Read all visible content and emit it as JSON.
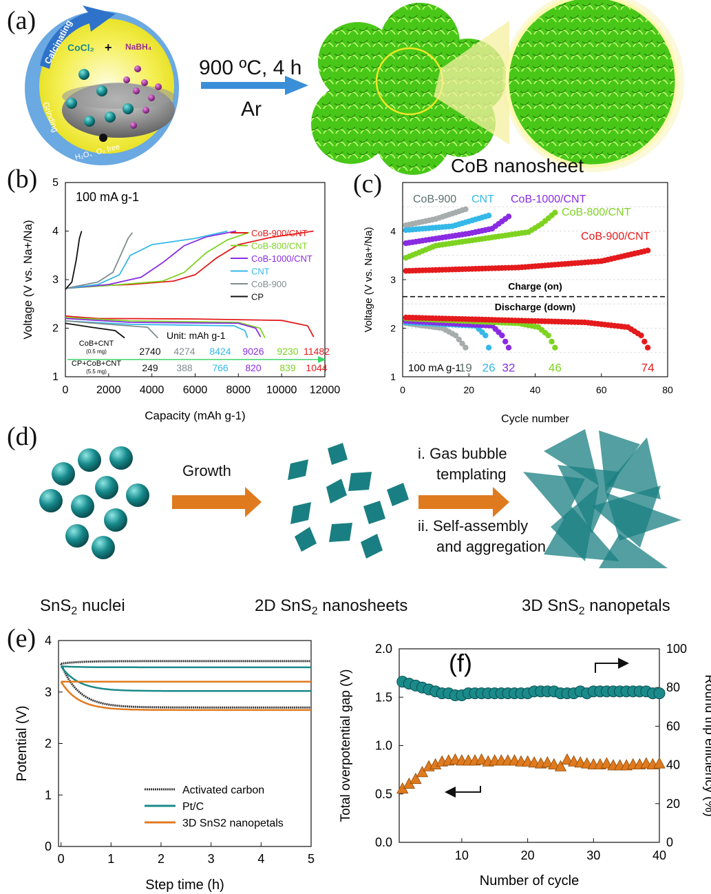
{
  "panels": {
    "a": "(a)",
    "b": "(b)",
    "c": "(c)",
    "d": "(d)",
    "e": "(e)",
    "f": "(f)"
  },
  "panel_a": {
    "calcinating": "Calcinating",
    "cocl2": "CoCl₂",
    "plus": "+",
    "nabh4": "NaBH₄",
    "grinding": "Grinding",
    "free": "H₂O、O₂ free",
    "condition": "900 ºC, 4 h",
    "gas": "Ar",
    "product": "CoB nanosheet",
    "colors": {
      "nano_green": "#4fd21a",
      "ring_yellow": "#f4ef52",
      "arrow_blue": "#3a8fd8"
    }
  },
  "panel_d": {
    "step1": "Growth",
    "step2a": "i.  Gas bubble",
    "step2b": "templating",
    "step2c": "ii. Self-assembly",
    "step2d": "and aggregation",
    "label1_pre": "SnS",
    "label1_sub": "2",
    "label1_post": " nuclei",
    "label2_pre": "2D SnS",
    "label2_sub": "2",
    "label2_post": " nanosheets",
    "label3_pre": "3D SnS",
    "label3_sub": "2",
    "label3_post": " nanopetals",
    "colors": {
      "teal": "#1a7f82",
      "orange_arrow": "#e07a1e"
    }
  },
  "chart_data": [
    {
      "id": "b",
      "type": "line",
      "annotation": "100 mA g-1",
      "xlabel": "Capacity (mAh g-1)",
      "ylabel": "Voltage (V vs. Na+/Na)",
      "xlim": [
        0,
        12000
      ],
      "ylim": [
        1,
        5
      ],
      "xticks": [
        0,
        2000,
        4000,
        6000,
        8000,
        10000,
        12000
      ],
      "yticks": [
        1,
        2,
        3,
        4,
        5
      ],
      "series": [
        {
          "name": "CoB-900/CNT",
          "color": "#e41a1c",
          "capacity": 11482,
          "charge": [
            [
              0,
              2.82
            ],
            [
              600,
              2.86
            ],
            [
              3000,
              2.9
            ],
            [
              5000,
              2.97
            ],
            [
              6000,
              3.1
            ],
            [
              7000,
              3.45
            ],
            [
              8000,
              3.72
            ],
            [
              9500,
              3.87
            ],
            [
              11482,
              4.0
            ]
          ],
          "discharge": [
            [
              0,
              2.25
            ],
            [
              1500,
              2.2
            ],
            [
              6000,
              2.19
            ],
            [
              10000,
              2.16
            ],
            [
              11200,
              2.05
            ],
            [
              11482,
              1.82
            ]
          ]
        },
        {
          "name": "CoB-800/CNT",
          "color": "#7ed321",
          "capacity": 9230,
          "charge": [
            [
              0,
              2.82
            ],
            [
              2000,
              2.88
            ],
            [
              4500,
              2.97
            ],
            [
              5500,
              3.15
            ],
            [
              6500,
              3.55
            ],
            [
              7500,
              3.82
            ],
            [
              8500,
              3.97
            ]
          ],
          "discharge": [
            [
              0,
              2.22
            ],
            [
              3000,
              2.15
            ],
            [
              8000,
              2.12
            ],
            [
              9000,
              2.0
            ],
            [
              9230,
              1.8
            ]
          ]
        },
        {
          "name": "CoB-1000/CNT",
          "color": "#8a2be2",
          "capacity": 9026,
          "charge": [
            [
              0,
              2.82
            ],
            [
              2000,
              2.9
            ],
            [
              3500,
              3.05
            ],
            [
              4500,
              3.35
            ],
            [
              5500,
              3.7
            ],
            [
              6500,
              3.88
            ],
            [
              7900,
              4.0
            ]
          ],
          "discharge": [
            [
              0,
              2.2
            ],
            [
              3000,
              2.12
            ],
            [
              8000,
              2.1
            ],
            [
              8800,
              2.0
            ],
            [
              9026,
              1.82
            ]
          ]
        },
        {
          "name": "CNT",
          "color": "#34b8e8",
          "capacity": 8424,
          "charge": [
            [
              0,
              2.82
            ],
            [
              1500,
              2.9
            ],
            [
              2500,
              3.1
            ],
            [
              3000,
              3.5
            ],
            [
              4000,
              3.72
            ],
            [
              6000,
              3.85
            ],
            [
              7500,
              4.0
            ]
          ],
          "discharge": [
            [
              0,
              2.15
            ],
            [
              3000,
              2.08
            ],
            [
              7800,
              2.05
            ],
            [
              8300,
              1.95
            ],
            [
              8424,
              1.8
            ]
          ]
        },
        {
          "name": "CoB-900",
          "color": "#7f8c8d",
          "capacity": 4274,
          "charge": [
            [
              0,
              2.82
            ],
            [
              1500,
              2.95
            ],
            [
              2200,
              3.15
            ],
            [
              2600,
              3.55
            ],
            [
              2900,
              3.85
            ],
            [
              3100,
              3.97
            ]
          ],
          "discharge": [
            [
              0,
              2.15
            ],
            [
              2000,
              2.08
            ],
            [
              3800,
              2.02
            ],
            [
              4274,
              1.8
            ]
          ]
        },
        {
          "name": "CP",
          "color": "#111111",
          "capacity": 2740,
          "charge": [
            [
              0,
              2.8
            ],
            [
              300,
              2.95
            ],
            [
              500,
              3.4
            ],
            [
              650,
              3.85
            ],
            [
              750,
              4.0
            ]
          ],
          "discharge": [
            [
              0,
              2.1
            ],
            [
              1200,
              2.02
            ],
            [
              2300,
              1.95
            ],
            [
              2740,
              1.8
            ]
          ]
        }
      ],
      "table": {
        "unit": "Unit: mAh g-1",
        "row1_label": "CoB+CNT",
        "row1_sub": "(0.5 mg)",
        "row1": [
          "2740",
          "4274",
          "8424",
          "9026",
          "9230",
          "11482"
        ],
        "row2_label": "CP+CoB+CNT",
        "row2_sub": "(5.5 mg)",
        "row2": [
          "249",
          "388",
          "766",
          "820",
          "839",
          "1044"
        ]
      }
    },
    {
      "id": "c",
      "type": "scatter",
      "annotation": "100 mA g-1",
      "xlabel": "Cycle number",
      "ylabel": "Voltage (V vs. Na+/Na)",
      "xlim": [
        0,
        80
      ],
      "ylim": [
        1,
        5
      ],
      "xticks": [
        0,
        20,
        40,
        60,
        80
      ],
      "yticks": [
        1,
        2,
        3,
        4
      ],
      "charge_label": "Charge (on)",
      "discharge_label": "Discharge (down)",
      "series": [
        {
          "name": "CoB-900",
          "color": "#a7adad",
          "cycles": 19,
          "charge": [
            [
              1,
              4.12
            ],
            [
              10,
              4.25
            ],
            [
              19,
              4.45
            ]
          ],
          "discharge": [
            [
              1,
              2.1
            ],
            [
              12,
              2.0
            ],
            [
              16,
              1.85
            ],
            [
              19,
              1.6
            ]
          ]
        },
        {
          "name": "CNT",
          "color": "#34b8e8",
          "cycles": 26,
          "charge": [
            [
              1,
              4.02
            ],
            [
              15,
              4.1
            ],
            [
              26,
              4.32
            ]
          ],
          "discharge": [
            [
              1,
              2.12
            ],
            [
              22,
              2.05
            ],
            [
              25,
              1.85
            ],
            [
              26,
              1.6
            ]
          ]
        },
        {
          "name": "CoB-1000/CNT",
          "color": "#8a2be2",
          "cycles": 32,
          "charge": [
            [
              1,
              3.75
            ],
            [
              20,
              3.95
            ],
            [
              27,
              4.05
            ],
            [
              32,
              4.3
            ]
          ],
          "discharge": [
            [
              1,
              2.15
            ],
            [
              27,
              2.05
            ],
            [
              30,
              1.85
            ],
            [
              32,
              1.6
            ]
          ]
        },
        {
          "name": "CoB-800/CNT",
          "color": "#7ed321",
          "cycles": 46,
          "charge": [
            [
              1,
              3.45
            ],
            [
              10,
              3.7
            ],
            [
              38,
              3.98
            ],
            [
              42,
              4.15
            ],
            [
              46,
              4.38
            ]
          ],
          "discharge": [
            [
              1,
              2.2
            ],
            [
              35,
              2.1
            ],
            [
              41,
              2.02
            ],
            [
              44,
              1.85
            ],
            [
              46,
              1.6
            ]
          ]
        },
        {
          "name": "CoB-900/CNT",
          "color": "#e41a1c",
          "cycles": 74,
          "charge": [
            [
              1,
              3.18
            ],
            [
              35,
              3.25
            ],
            [
              60,
              3.38
            ],
            [
              74,
              3.6
            ]
          ],
          "discharge": [
            [
              1,
              2.22
            ],
            [
              55,
              2.12
            ],
            [
              68,
              2.02
            ],
            [
              72,
              1.85
            ],
            [
              74,
              1.6
            ]
          ]
        }
      ],
      "end_labels": [
        "19",
        "26",
        "32",
        "46",
        "74"
      ]
    },
    {
      "id": "e",
      "type": "line",
      "xlabel": "Step time (h)",
      "ylabel": "Potential (V)",
      "xlim": [
        -0.05,
        5
      ],
      "ylim": [
        0,
        4
      ],
      "xticks": [
        0,
        1,
        2,
        3,
        4,
        5
      ],
      "yticks": [
        0,
        1,
        2,
        3,
        4
      ],
      "series": [
        {
          "name": "Activated carbon",
          "color": "#333333",
          "upper": 3.6,
          "lower": 2.7,
          "start": 3.55
        },
        {
          "name": "Pt/C",
          "color": "#1a8a8a",
          "upper": 3.48,
          "lower": 3.02,
          "start": 3.5
        },
        {
          "name": "3D SnS2 nanopetals",
          "color": "#e07a1e",
          "upper": 3.2,
          "lower": 2.65,
          "start": 3.2
        }
      ]
    },
    {
      "id": "f",
      "type": "scatter",
      "xlabel": "Number of cycle",
      "ylabel": "Total overpotential gap (V)",
      "ylabel2": "Round trip efficiency (%)",
      "xlim": [
        0.5,
        40
      ],
      "ylim": [
        0,
        2
      ],
      "ylim2": [
        0,
        100
      ],
      "xticks": [
        10,
        20,
        30,
        40
      ],
      "yticks": [
        "0.0",
        "0.5",
        "1.0",
        "1.5",
        "2.0"
      ],
      "yticks2": [
        0,
        20,
        40,
        60,
        80,
        100
      ],
      "efficiency": [
        83,
        82,
        81,
        80,
        79,
        78,
        77,
        77,
        76,
        76,
        77,
        77,
        77,
        77,
        77,
        77,
        77,
        77,
        77,
        77,
        78,
        78,
        78,
        78,
        77,
        77,
        77,
        78,
        77,
        78,
        78,
        78,
        78,
        78,
        78,
        78,
        78,
        78,
        77,
        77
      ],
      "gap": [
        0.55,
        0.6,
        0.65,
        0.72,
        0.78,
        0.8,
        0.83,
        0.84,
        0.85,
        0.84,
        0.84,
        0.84,
        0.85,
        0.83,
        0.84,
        0.84,
        0.84,
        0.84,
        0.83,
        0.83,
        0.82,
        0.81,
        0.82,
        0.8,
        0.78,
        0.85,
        0.83,
        0.82,
        0.81,
        0.8,
        0.8,
        0.81,
        0.79,
        0.79,
        0.79,
        0.8,
        0.8,
        0.81,
        0.8,
        0.81
      ],
      "colors": {
        "efficiency": "#1a8a8a",
        "gap": "#e07a1e"
      }
    }
  ]
}
